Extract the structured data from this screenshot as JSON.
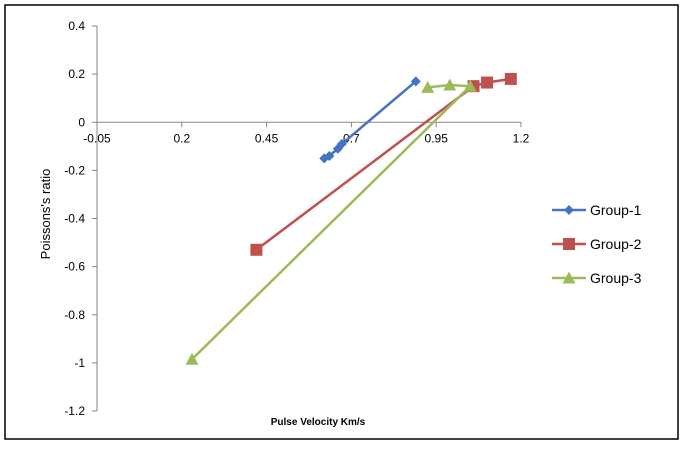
{
  "chart_data": {
    "type": "scatter",
    "title": "",
    "xlabel": "Pulse Velocity Km/s",
    "ylabel": "Poissons's ratio",
    "xlim": [
      -0.05,
      1.2
    ],
    "ylim": [
      -1.2,
      0.4
    ],
    "x_ticks": [
      "-0.05",
      "0.2",
      "0.45",
      "0.7",
      "0.95",
      "1.2"
    ],
    "x_tick_values": [
      -0.05,
      0.2,
      0.45,
      0.7,
      0.95,
      1.2
    ],
    "y_ticks": [
      "0.4",
      "0.2",
      "0",
      "-0.2",
      "-0.4",
      "-0.6",
      "-0.8",
      "-1",
      "-1.2"
    ],
    "y_tick_values": [
      0.4,
      0.2,
      0,
      -0.2,
      -0.4,
      -0.6,
      -0.8,
      -1,
      -1.2
    ],
    "grid": false,
    "legend_position": "right",
    "series": [
      {
        "name": "Group-1",
        "color": "#4472C4",
        "marker": "diamond",
        "points": [
          [
            0.62,
            -0.15
          ],
          [
            0.635,
            -0.14
          ],
          [
            0.66,
            -0.11
          ],
          [
            0.672,
            -0.09
          ],
          [
            0.89,
            0.17
          ]
        ]
      },
      {
        "name": "Group-2",
        "color": "#C0504D",
        "marker": "square",
        "points": [
          [
            0.42,
            -0.53
          ],
          [
            1.06,
            0.15
          ],
          [
            1.1,
            0.165
          ],
          [
            1.17,
            0.18
          ]
        ]
      },
      {
        "name": "Group-3",
        "color": "#9BBB59",
        "marker": "triangle",
        "points": [
          [
            0.23,
            -0.985
          ],
          [
            1.05,
            0.15
          ],
          [
            0.99,
            0.155
          ],
          [
            0.925,
            0.145
          ]
        ]
      }
    ]
  }
}
